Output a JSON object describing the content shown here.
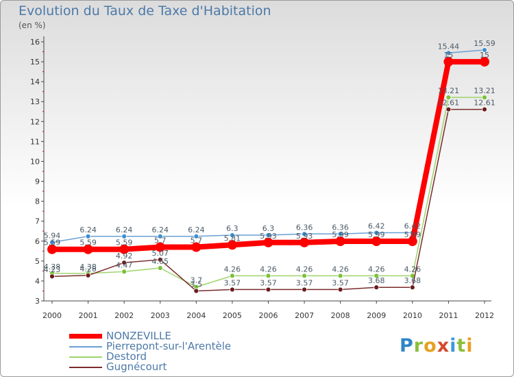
{
  "title": "Evolution du Taux de Taxe d'Habitation",
  "subtitle": "(en %)",
  "logo": {
    "letters": [
      "P",
      "r",
      "o",
      "x",
      "i",
      "t",
      "i"
    ],
    "colors": [
      "#2f86c8",
      "#8bbf3a",
      "#e8a020",
      "#d44a2c",
      "#3a9ad9",
      "#8bbf3a",
      "#e8a020"
    ]
  },
  "chart_data": {
    "type": "line",
    "x": [
      "2000",
      "2001",
      "2002",
      "2003",
      "2004",
      "2005",
      "2006",
      "2007",
      "2008",
      "2009",
      "2010",
      "2011",
      "2012"
    ],
    "ylim": [
      3,
      16
    ],
    "yticks": [
      3,
      4,
      5,
      6,
      7,
      8,
      9,
      10,
      11,
      12,
      13,
      14,
      15,
      16
    ],
    "grid": false,
    "legend_position": "bottom-left",
    "series": [
      {
        "name": "NONZEVILLE",
        "color": "#ff0000",
        "values": [
          5.59,
          5.59,
          5.59,
          5.7,
          5.7,
          5.81,
          5.93,
          5.93,
          5.99,
          5.99,
          5.99,
          15,
          15
        ],
        "labels": [
          "5.59",
          "5.59",
          "5.59",
          "5.7",
          "5.7",
          "5.81",
          "5.93",
          "5.93",
          "5.99",
          "5.99",
          "5.99",
          "15",
          "15"
        ],
        "bold": true
      },
      {
        "name": "Pierrepont-sur-l'Arentèle",
        "color": "#6a9fd4",
        "point_color": "#3f8fd0",
        "values": [
          5.94,
          6.24,
          6.24,
          6.24,
          6.24,
          6.3,
          6.3,
          6.36,
          6.36,
          6.42,
          6.42,
          15.44,
          15.59
        ],
        "labels": [
          "5.94",
          "6.24",
          "6.24",
          "6.24",
          "6.24",
          "6.3",
          "6.3",
          "6.36",
          "6.36",
          "6.42",
          "6.42",
          "15.44",
          "15.59"
        ]
      },
      {
        "name": "Destord",
        "color": "#9ed46a",
        "point_color": "#79c23a",
        "values": [
          4.38,
          4.38,
          4.47,
          4.65,
          3.7,
          4.26,
          4.26,
          4.26,
          4.26,
          4.26,
          4.26,
          13.21,
          13.21
        ],
        "labels": [
          "4.38",
          "4.38",
          "4.47",
          "4.65",
          "3.7",
          "4.26",
          "4.26",
          "4.26",
          "4.26",
          "4.26",
          "4.26",
          "13.21",
          "13.21"
        ]
      },
      {
        "name": "Gugnécourt",
        "color": "#7a2a2a",
        "point_color": "#6a1d1d",
        "values": [
          4.23,
          4.28,
          4.92,
          5.07,
          3.5,
          3.57,
          3.57,
          3.57,
          3.57,
          3.68,
          3.68,
          12.61,
          12.61
        ],
        "labels": [
          "4.23",
          "4.28",
          "4.92",
          "5.07",
          "3.5",
          "3.57",
          "3.57",
          "3.57",
          "3.57",
          "3.68",
          "3.68",
          "12.61",
          "12.61"
        ]
      }
    ]
  }
}
